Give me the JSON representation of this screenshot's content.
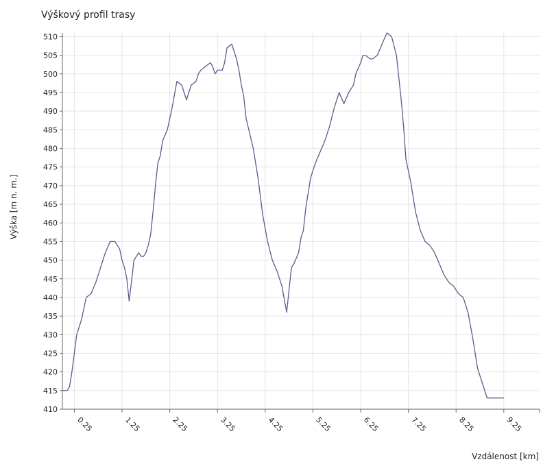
{
  "chart_data": {
    "type": "line",
    "title": "Výškový profil trasy",
    "xlabel": "Vzdálenost [km]",
    "ylabel": "Výška [m n. m.]",
    "xlim": [
      0,
      10
    ],
    "ylim": [
      410,
      511
    ],
    "x_ticks": [
      0.25,
      1.25,
      2.25,
      3.25,
      4.25,
      5.25,
      6.25,
      7.25,
      8.25,
      9.25
    ],
    "x_tick_labels": [
      "0.25",
      "1.25",
      "2.25",
      "3.25",
      "4.25",
      "5.25",
      "6.25",
      "7.25",
      "8.25",
      "9.25"
    ],
    "y_ticks": [
      410,
      415,
      420,
      425,
      430,
      435,
      440,
      445,
      450,
      455,
      460,
      465,
      470,
      475,
      480,
      485,
      490,
      495,
      500,
      505,
      510
    ],
    "y_tick_labels": [
      "410",
      "415",
      "420",
      "425",
      "430",
      "435",
      "440",
      "445",
      "450",
      "455",
      "460",
      "465",
      "470",
      "475",
      "480",
      "485",
      "490",
      "495",
      "500",
      "505",
      "510"
    ],
    "grid": true,
    "line_color": "#5a5a8c",
    "series": [
      {
        "x": [
          0.0,
          0.05,
          0.1,
          0.15,
          0.2,
          0.25,
          0.3,
          0.4,
          0.5,
          0.6,
          0.7,
          0.8,
          0.9,
          1.0,
          1.1,
          1.2,
          1.25,
          1.3,
          1.35,
          1.4,
          1.5,
          1.6,
          1.65,
          1.7,
          1.75,
          1.8,
          1.85,
          1.9,
          1.95,
          2.0,
          2.05,
          2.1,
          2.2,
          2.3,
          2.4,
          2.5,
          2.55,
          2.6,
          2.65,
          2.7,
          2.8,
          2.85,
          2.9,
          3.0,
          3.1,
          3.15,
          3.2,
          3.25,
          3.35,
          3.4,
          3.45,
          3.55,
          3.65,
          3.7,
          3.75,
          3.8,
          3.85,
          4.0,
          4.1,
          4.2,
          4.3,
          4.4,
          4.5,
          4.6,
          4.7,
          4.8,
          4.85,
          4.95,
          5.0,
          5.05,
          5.1,
          5.2,
          5.3,
          5.4,
          5.5,
          5.6,
          5.7,
          5.8,
          5.9,
          6.0,
          6.1,
          6.15,
          6.25,
          6.3,
          6.35,
          6.45,
          6.5,
          6.6,
          6.7,
          6.8,
          6.9,
          7.0,
          7.05,
          7.1,
          7.15,
          7.2,
          7.3,
          7.4,
          7.5,
          7.6,
          7.7,
          7.8,
          7.9,
          8.0,
          8.1,
          8.2,
          8.3,
          8.4,
          8.5,
          8.6,
          8.7,
          8.8,
          8.9,
          9.0,
          9.1,
          9.2,
          9.25
        ],
        "y": [
          415,
          415,
          415,
          416,
          420,
          425,
          430,
          434,
          440,
          441,
          444,
          448,
          452,
          455,
          455,
          453,
          450,
          448,
          445,
          439,
          450,
          452,
          451,
          451,
          452,
          454,
          457,
          463,
          470,
          476,
          478,
          482,
          485,
          491,
          498,
          497,
          495,
          493,
          495,
          497,
          498,
          500,
          501,
          502,
          503,
          502,
          500,
          501,
          501,
          503,
          507,
          508,
          504,
          501,
          497,
          494,
          488,
          480,
          472,
          462,
          455,
          450,
          447,
          443,
          436,
          448,
          449,
          452,
          456,
          458,
          464,
          472,
          476,
          479,
          482,
          486,
          491,
          495,
          492,
          495,
          497,
          500,
          503,
          505,
          505,
          504,
          504,
          505,
          508,
          511,
          510,
          505,
          499,
          493,
          486,
          477,
          471,
          463,
          458,
          455,
          454,
          452,
          449,
          446,
          444,
          443,
          441,
          440,
          436,
          429,
          421,
          417,
          413,
          413,
          413,
          413,
          413
        ]
      }
    ]
  }
}
